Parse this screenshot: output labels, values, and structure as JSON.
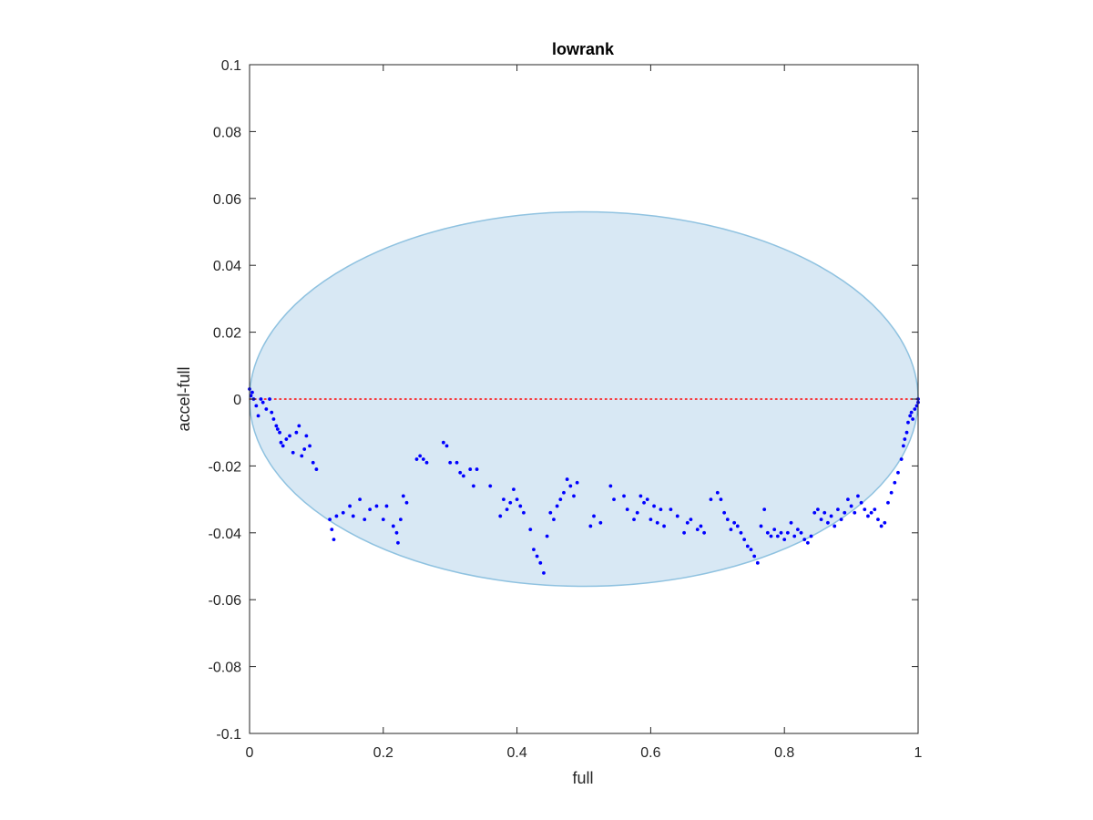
{
  "chart_data": {
    "type": "scatter",
    "title": "lowrank",
    "xlabel": "full",
    "ylabel": "accel-full",
    "xlim": [
      0,
      1
    ],
    "ylim": [
      -0.1,
      0.1
    ],
    "xticks": [
      "0",
      "0.2",
      "0.4",
      "0.6",
      "0.8",
      "1"
    ],
    "yticks": [
      "-0.1",
      "-0.08",
      "-0.06",
      "-0.04",
      "-0.02",
      "0",
      "0.02",
      "0.04",
      "0.06",
      "0.08",
      "0.1"
    ],
    "grid": false,
    "colors": {
      "points": "#0000ff",
      "ellipse_fill": "#d8e8f4",
      "ellipse_stroke": "#8fc2e0",
      "reference_line": "#ff0000",
      "axes": "#262626"
    },
    "ellipse": {
      "center": [
        0.5,
        0.0
      ],
      "semi_x": 0.5,
      "semi_y": 0.056
    },
    "reference_line": {
      "y": 0,
      "style": "dotted"
    },
    "series": [
      {
        "values": [
          [
            0.0,
            0.003
          ],
          [
            0.002,
            0.001
          ],
          [
            0.004,
            0.002
          ],
          [
            0.006,
            0.0
          ],
          [
            0.01,
            -0.002
          ],
          [
            0.013,
            -0.005
          ],
          [
            0.017,
            0.0
          ],
          [
            0.02,
            -0.001
          ],
          [
            0.025,
            -0.003
          ],
          [
            0.03,
            0.0
          ],
          [
            0.033,
            -0.004
          ],
          [
            0.036,
            -0.006
          ],
          [
            0.04,
            -0.008
          ],
          [
            0.042,
            -0.009
          ],
          [
            0.045,
            -0.01
          ],
          [
            0.047,
            -0.013
          ],
          [
            0.05,
            -0.014
          ],
          [
            0.055,
            -0.012
          ],
          [
            0.06,
            -0.011
          ],
          [
            0.065,
            -0.016
          ],
          [
            0.07,
            -0.01
          ],
          [
            0.074,
            -0.008
          ],
          [
            0.078,
            -0.017
          ],
          [
            0.082,
            -0.015
          ],
          [
            0.085,
            -0.011
          ],
          [
            0.09,
            -0.014
          ],
          [
            0.095,
            -0.019
          ],
          [
            0.1,
            -0.021
          ],
          [
            0.12,
            -0.036
          ],
          [
            0.123,
            -0.039
          ],
          [
            0.126,
            -0.042
          ],
          [
            0.13,
            -0.035
          ],
          [
            0.14,
            -0.034
          ],
          [
            0.15,
            -0.032
          ],
          [
            0.155,
            -0.035
          ],
          [
            0.165,
            -0.03
          ],
          [
            0.172,
            -0.036
          ],
          [
            0.18,
            -0.033
          ],
          [
            0.19,
            -0.032
          ],
          [
            0.2,
            -0.036
          ],
          [
            0.205,
            -0.032
          ],
          [
            0.215,
            -0.038
          ],
          [
            0.22,
            -0.04
          ],
          [
            0.222,
            -0.043
          ],
          [
            0.226,
            -0.036
          ],
          [
            0.23,
            -0.029
          ],
          [
            0.235,
            -0.031
          ],
          [
            0.25,
            -0.018
          ],
          [
            0.255,
            -0.017
          ],
          [
            0.26,
            -0.018
          ],
          [
            0.265,
            -0.019
          ],
          [
            0.29,
            -0.013
          ],
          [
            0.295,
            -0.014
          ],
          [
            0.3,
            -0.019
          ],
          [
            0.31,
            -0.019
          ],
          [
            0.315,
            -0.022
          ],
          [
            0.32,
            -0.023
          ],
          [
            0.33,
            -0.021
          ],
          [
            0.335,
            -0.026
          ],
          [
            0.34,
            -0.021
          ],
          [
            0.36,
            -0.026
          ],
          [
            0.375,
            -0.035
          ],
          [
            0.38,
            -0.03
          ],
          [
            0.385,
            -0.033
          ],
          [
            0.39,
            -0.031
          ],
          [
            0.395,
            -0.027
          ],
          [
            0.4,
            -0.03
          ],
          [
            0.405,
            -0.032
          ],
          [
            0.41,
            -0.034
          ],
          [
            0.42,
            -0.039
          ],
          [
            0.425,
            -0.045
          ],
          [
            0.43,
            -0.047
          ],
          [
            0.435,
            -0.049
          ],
          [
            0.44,
            -0.052
          ],
          [
            0.445,
            -0.041
          ],
          [
            0.45,
            -0.034
          ],
          [
            0.455,
            -0.036
          ],
          [
            0.46,
            -0.032
          ],
          [
            0.465,
            -0.03
          ],
          [
            0.47,
            -0.028
          ],
          [
            0.475,
            -0.024
          ],
          [
            0.48,
            -0.026
          ],
          [
            0.485,
            -0.029
          ],
          [
            0.49,
            -0.025
          ],
          [
            0.51,
            -0.038
          ],
          [
            0.515,
            -0.035
          ],
          [
            0.525,
            -0.037
          ],
          [
            0.54,
            -0.026
          ],
          [
            0.545,
            -0.03
          ],
          [
            0.56,
            -0.029
          ],
          [
            0.565,
            -0.033
          ],
          [
            0.575,
            -0.036
          ],
          [
            0.58,
            -0.034
          ],
          [
            0.585,
            -0.029
          ],
          [
            0.59,
            -0.031
          ],
          [
            0.595,
            -0.03
          ],
          [
            0.6,
            -0.036
          ],
          [
            0.605,
            -0.032
          ],
          [
            0.61,
            -0.037
          ],
          [
            0.615,
            -0.033
          ],
          [
            0.62,
            -0.038
          ],
          [
            0.63,
            -0.033
          ],
          [
            0.64,
            -0.035
          ],
          [
            0.65,
            -0.04
          ],
          [
            0.655,
            -0.037
          ],
          [
            0.66,
            -0.036
          ],
          [
            0.67,
            -0.039
          ],
          [
            0.675,
            -0.038
          ],
          [
            0.68,
            -0.04
          ],
          [
            0.69,
            -0.03
          ],
          [
            0.7,
            -0.028
          ],
          [
            0.705,
            -0.03
          ],
          [
            0.71,
            -0.034
          ],
          [
            0.715,
            -0.036
          ],
          [
            0.72,
            -0.039
          ],
          [
            0.725,
            -0.037
          ],
          [
            0.73,
            -0.038
          ],
          [
            0.735,
            -0.04
          ],
          [
            0.74,
            -0.042
          ],
          [
            0.745,
            -0.044
          ],
          [
            0.75,
            -0.045
          ],
          [
            0.755,
            -0.047
          ],
          [
            0.76,
            -0.049
          ],
          [
            0.765,
            -0.038
          ],
          [
            0.77,
            -0.033
          ],
          [
            0.775,
            -0.04
          ],
          [
            0.78,
            -0.041
          ],
          [
            0.785,
            -0.039
          ],
          [
            0.79,
            -0.041
          ],
          [
            0.795,
            -0.04
          ],
          [
            0.8,
            -0.042
          ],
          [
            0.805,
            -0.04
          ],
          [
            0.81,
            -0.037
          ],
          [
            0.815,
            -0.041
          ],
          [
            0.82,
            -0.039
          ],
          [
            0.825,
            -0.04
          ],
          [
            0.83,
            -0.042
          ],
          [
            0.835,
            -0.043
          ],
          [
            0.84,
            -0.041
          ],
          [
            0.845,
            -0.034
          ],
          [
            0.85,
            -0.033
          ],
          [
            0.855,
            -0.036
          ],
          [
            0.86,
            -0.034
          ],
          [
            0.865,
            -0.037
          ],
          [
            0.87,
            -0.035
          ],
          [
            0.875,
            -0.038
          ],
          [
            0.88,
            -0.033
          ],
          [
            0.885,
            -0.036
          ],
          [
            0.89,
            -0.034
          ],
          [
            0.895,
            -0.03
          ],
          [
            0.9,
            -0.032
          ],
          [
            0.905,
            -0.034
          ],
          [
            0.91,
            -0.029
          ],
          [
            0.915,
            -0.031
          ],
          [
            0.92,
            -0.033
          ],
          [
            0.925,
            -0.035
          ],
          [
            0.93,
            -0.034
          ],
          [
            0.935,
            -0.033
          ],
          [
            0.94,
            -0.036
          ],
          [
            0.945,
            -0.038
          ],
          [
            0.95,
            -0.037
          ],
          [
            0.955,
            -0.031
          ],
          [
            0.96,
            -0.028
          ],
          [
            0.965,
            -0.025
          ],
          [
            0.97,
            -0.022
          ],
          [
            0.975,
            -0.018
          ],
          [
            0.978,
            -0.014
          ],
          [
            0.98,
            -0.012
          ],
          [
            0.983,
            -0.01
          ],
          [
            0.985,
            -0.007
          ],
          [
            0.988,
            -0.005
          ],
          [
            0.99,
            -0.004
          ],
          [
            0.992,
            -0.006
          ],
          [
            0.995,
            -0.003
          ],
          [
            0.998,
            -0.002
          ],
          [
            1.0,
            0.0
          ],
          [
            1.0,
            -0.001
          ]
        ]
      }
    ]
  }
}
